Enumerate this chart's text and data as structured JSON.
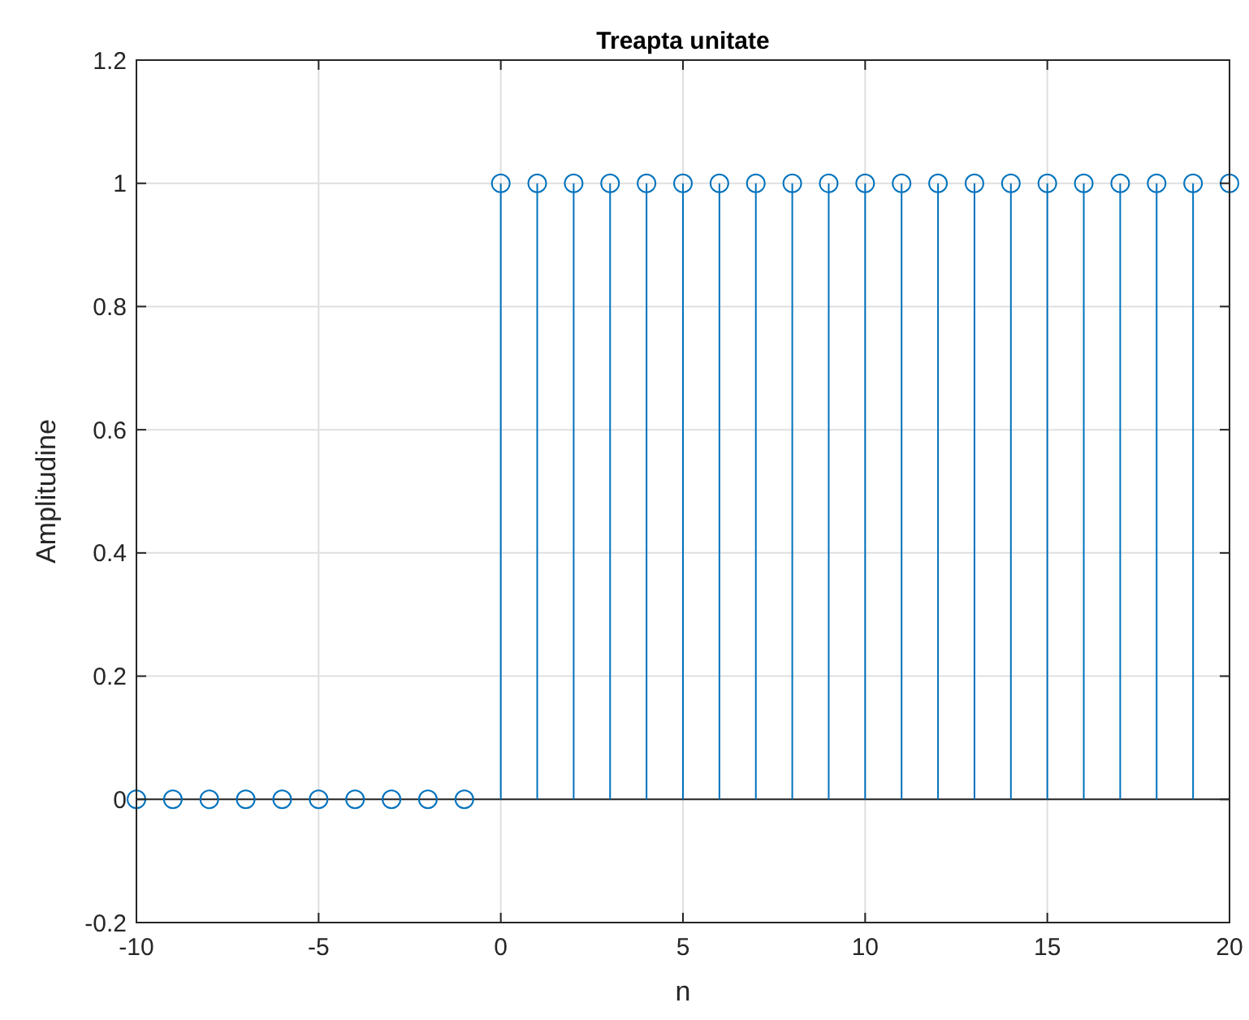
{
  "chart_data": {
    "type": "lollipop",
    "title": "Treapta unitate",
    "xlabel": "n",
    "ylabel": "Amplitudine",
    "x": [
      -10,
      -9,
      -8,
      -7,
      -6,
      -5,
      -4,
      -3,
      -2,
      -1,
      0,
      1,
      2,
      3,
      4,
      5,
      6,
      7,
      8,
      9,
      10,
      11,
      12,
      13,
      14,
      15,
      16,
      17,
      18,
      19,
      20
    ],
    "series": [
      {
        "color": "#0072bd",
        "values": [
          0,
          0,
          0,
          0,
          0,
          0,
          0,
          0,
          0,
          0,
          1,
          1,
          1,
          1,
          1,
          1,
          1,
          1,
          1,
          1,
          1,
          1,
          1,
          1,
          1,
          1,
          1,
          1,
          1,
          1,
          1
        ]
      }
    ],
    "xlim": [
      -10,
      20
    ],
    "xticks": [
      -10,
      -5,
      0,
      5,
      10,
      15,
      20
    ],
    "ylim": [
      -0.2,
      1.2
    ],
    "yticks": [
      -0.2,
      0,
      0.2,
      0.4,
      0.6,
      0.8,
      1,
      1.2
    ],
    "ref_lines": [
      {
        "axis": "y",
        "value": 0,
        "color": "#262626"
      }
    ],
    "grid": true,
    "marker": "circle"
  }
}
